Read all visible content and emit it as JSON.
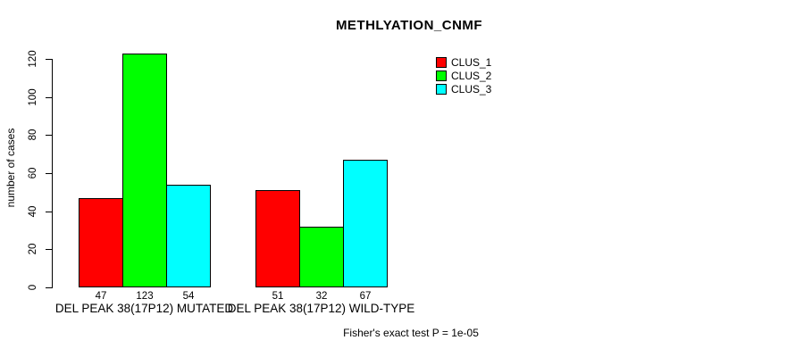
{
  "page": {
    "background": "#ffffff"
  },
  "chart_data": {
    "type": "bar",
    "title": "METHLYATION_CNMF",
    "xlabel": "",
    "ylabel": "number of cases",
    "categories": [
      "DEL PEAK 38(17P12) MUTATED",
      "DEL PEAK 38(17P12) WILD-TYPE"
    ],
    "series": [
      {
        "name": "CLUS_1",
        "color": "#ff0000",
        "values": [
          47,
          51
        ]
      },
      {
        "name": "CLUS_2",
        "color": "#00ff00",
        "values": [
          123,
          32
        ]
      },
      {
        "name": "CLUS_3",
        "color": "#00ffff",
        "values": [
          54,
          67
        ]
      }
    ],
    "bar_value_labels": [
      [
        "47",
        "123",
        "54"
      ],
      [
        "51",
        "32",
        "67"
      ]
    ],
    "yticks": [
      0,
      20,
      40,
      60,
      80,
      100,
      120
    ],
    "ylim": [
      0,
      120
    ],
    "grid": false,
    "bar_border_color": "#000000",
    "legend": {
      "position": "top-right",
      "entries": [
        {
          "label": "CLUS_1",
          "color": "#ff0000"
        },
        {
          "label": "CLUS_2",
          "color": "#00ff00"
        },
        {
          "label": "CLUS_3",
          "color": "#00ffff"
        }
      ]
    },
    "footer": "Fisher's exact test P = 1e-05"
  }
}
